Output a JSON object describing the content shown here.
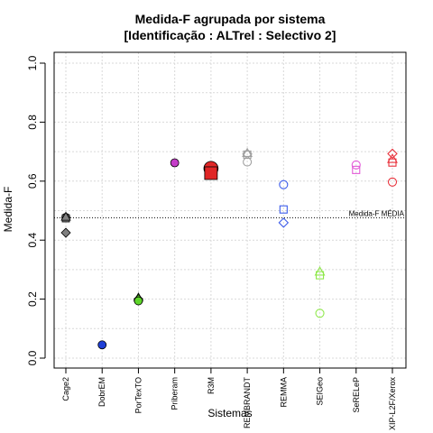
{
  "chart_data": {
    "type": "scatter",
    "title": "Medida-F agrupada por sistema",
    "subtitle": "[Identificação : ALTrel : Selectivo 2]",
    "xlabel": "Sistemas",
    "ylabel": "Medida-F",
    "ylim": [
      0.0,
      1.0
    ],
    "yticks": [
      "0.0",
      "0.2",
      "0.4",
      "0.6",
      "0.8",
      "1.0"
    ],
    "grid": true,
    "categories": [
      "Cage2",
      "DobrEM",
      "PorTexTO",
      "Priberam",
      "R3M",
      "REMBRANDT",
      "REMMA",
      "SEIGeo",
      "SeRELeP",
      "XIP-L2F/Xerox"
    ],
    "reference_line": {
      "label": "Medida-F MÉDIA",
      "value": 0.476
    },
    "series": [
      {
        "category": "Cage2",
        "color": "#808080",
        "filled": true,
        "large": false,
        "points": [
          {
            "shape": "circle",
            "value": 0.477
          },
          {
            "shape": "square",
            "value": 0.474
          },
          {
            "shape": "triangle",
            "value": 0.479
          },
          {
            "shape": "diamond",
            "value": 0.425
          }
        ]
      },
      {
        "category": "DobrEM",
        "color": "#1f3fd6",
        "filled": true,
        "large": false,
        "points": [
          {
            "shape": "circle",
            "value": 0.045
          }
        ]
      },
      {
        "category": "PorTexTO",
        "color": "#5ed62a",
        "filled": true,
        "large": false,
        "points": [
          {
            "shape": "triangle",
            "value": 0.205
          },
          {
            "shape": "diamond",
            "value": 0.2
          },
          {
            "shape": "circle",
            "value": 0.194
          }
        ]
      },
      {
        "category": "Priberam",
        "color": "#c43dc8",
        "filled": true,
        "large": false,
        "points": [
          {
            "shape": "circle",
            "value": 0.662
          }
        ]
      },
      {
        "category": "R3M",
        "color": "#e02626",
        "filled": true,
        "large": true,
        "points": [
          {
            "shape": "circle",
            "value": 0.643
          },
          {
            "shape": "square",
            "value": 0.627
          }
        ]
      },
      {
        "category": "REMBRANDT",
        "color": "#a0a0a0",
        "filled": false,
        "large": false,
        "points": [
          {
            "shape": "triangle",
            "value": 0.695
          },
          {
            "shape": "diamond",
            "value": 0.692
          },
          {
            "shape": "square",
            "value": 0.69
          },
          {
            "shape": "circle",
            "value": 0.665
          }
        ]
      },
      {
        "category": "REMMA",
        "color": "#3b5bea",
        "filled": false,
        "large": false,
        "points": [
          {
            "shape": "circle",
            "value": 0.588
          },
          {
            "shape": "square",
            "value": 0.504
          },
          {
            "shape": "diamond",
            "value": 0.459
          }
        ]
      },
      {
        "category": "SEIGeo",
        "color": "#8ee84a",
        "filled": false,
        "large": false,
        "points": [
          {
            "shape": "triangle",
            "value": 0.293
          },
          {
            "shape": "square",
            "value": 0.281
          },
          {
            "shape": "circle",
            "value": 0.152
          }
        ]
      },
      {
        "category": "SeRELeP",
        "color": "#e35ad8",
        "filled": false,
        "large": false,
        "points": [
          {
            "shape": "circle",
            "value": 0.655
          },
          {
            "shape": "square",
            "value": 0.638
          }
        ]
      },
      {
        "category": "XIP-L2F/Xerox",
        "color": "#e8303a",
        "filled": false,
        "large": false,
        "points": [
          {
            "shape": "diamond",
            "value": 0.693
          },
          {
            "shape": "triangle",
            "value": 0.675
          },
          {
            "shape": "square",
            "value": 0.663
          },
          {
            "shape": "circle",
            "value": 0.597
          }
        ]
      }
    ]
  }
}
